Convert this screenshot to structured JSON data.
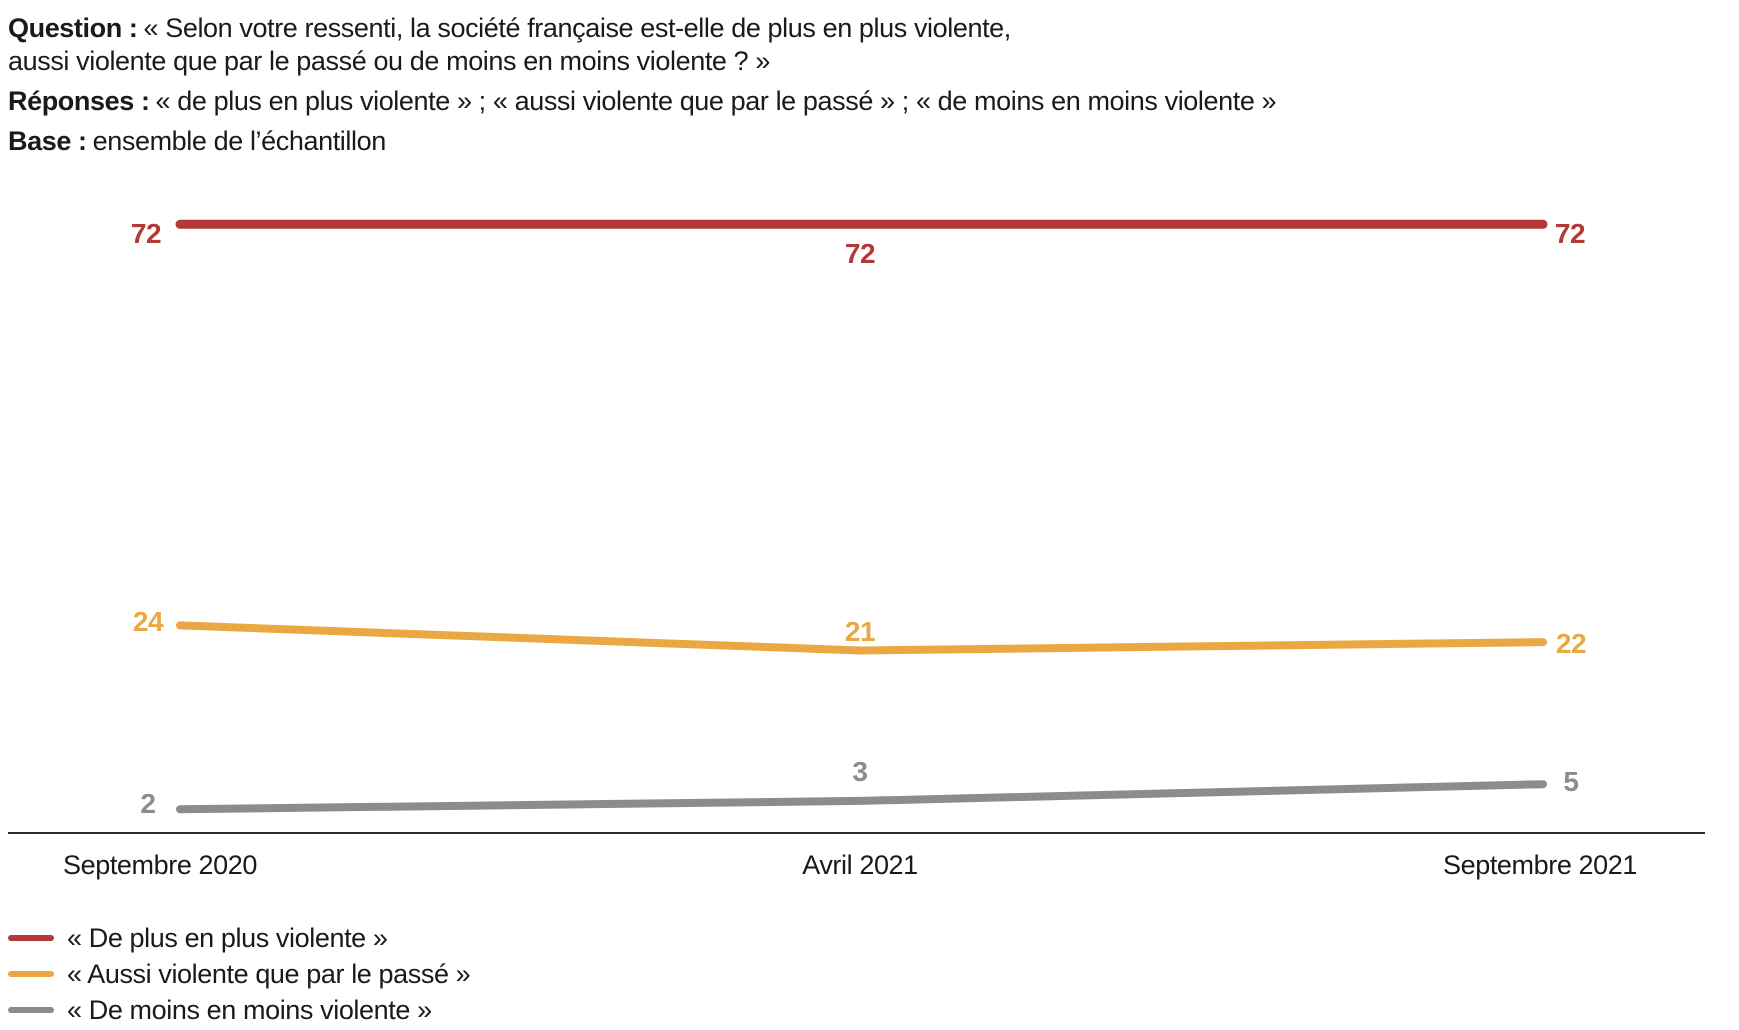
{
  "header": {
    "question_label": "Question :",
    "question_line1": "« Selon votre ressenti, la société française est-elle de plus en plus violente,",
    "question_line2": "aussi violente que par le passé ou de moins en moins violente ? »",
    "responses_label": "Réponses :",
    "responses_text": "« de plus en plus violente » ; « aussi violente que par le passé » ; « de moins en moins violente »",
    "base_label": "Base :",
    "base_text": "ensemble de l’échantillon"
  },
  "chart_data": {
    "type": "line",
    "title": "",
    "categories": [
      "Septembre 2020",
      "Avril 2021",
      "Septembre 2021"
    ],
    "series": [
      {
        "name": "« De plus en plus violente »",
        "color": "#b23936",
        "values": [
          72,
          72,
          72
        ]
      },
      {
        "name": "« Aussi violente que par le passé »",
        "color": "#e9a844",
        "values": [
          24,
          21,
          22
        ]
      },
      {
        "name": "« De moins en moins violente »",
        "color": "#898d8c",
        "values": [
          2,
          3,
          5
        ]
      }
    ],
    "ylim": [
      0,
      78
    ],
    "grid": false,
    "legend_position": "bottom-left",
    "axis_line_color": "#2b2b2b",
    "value_labels_shown": true
  }
}
